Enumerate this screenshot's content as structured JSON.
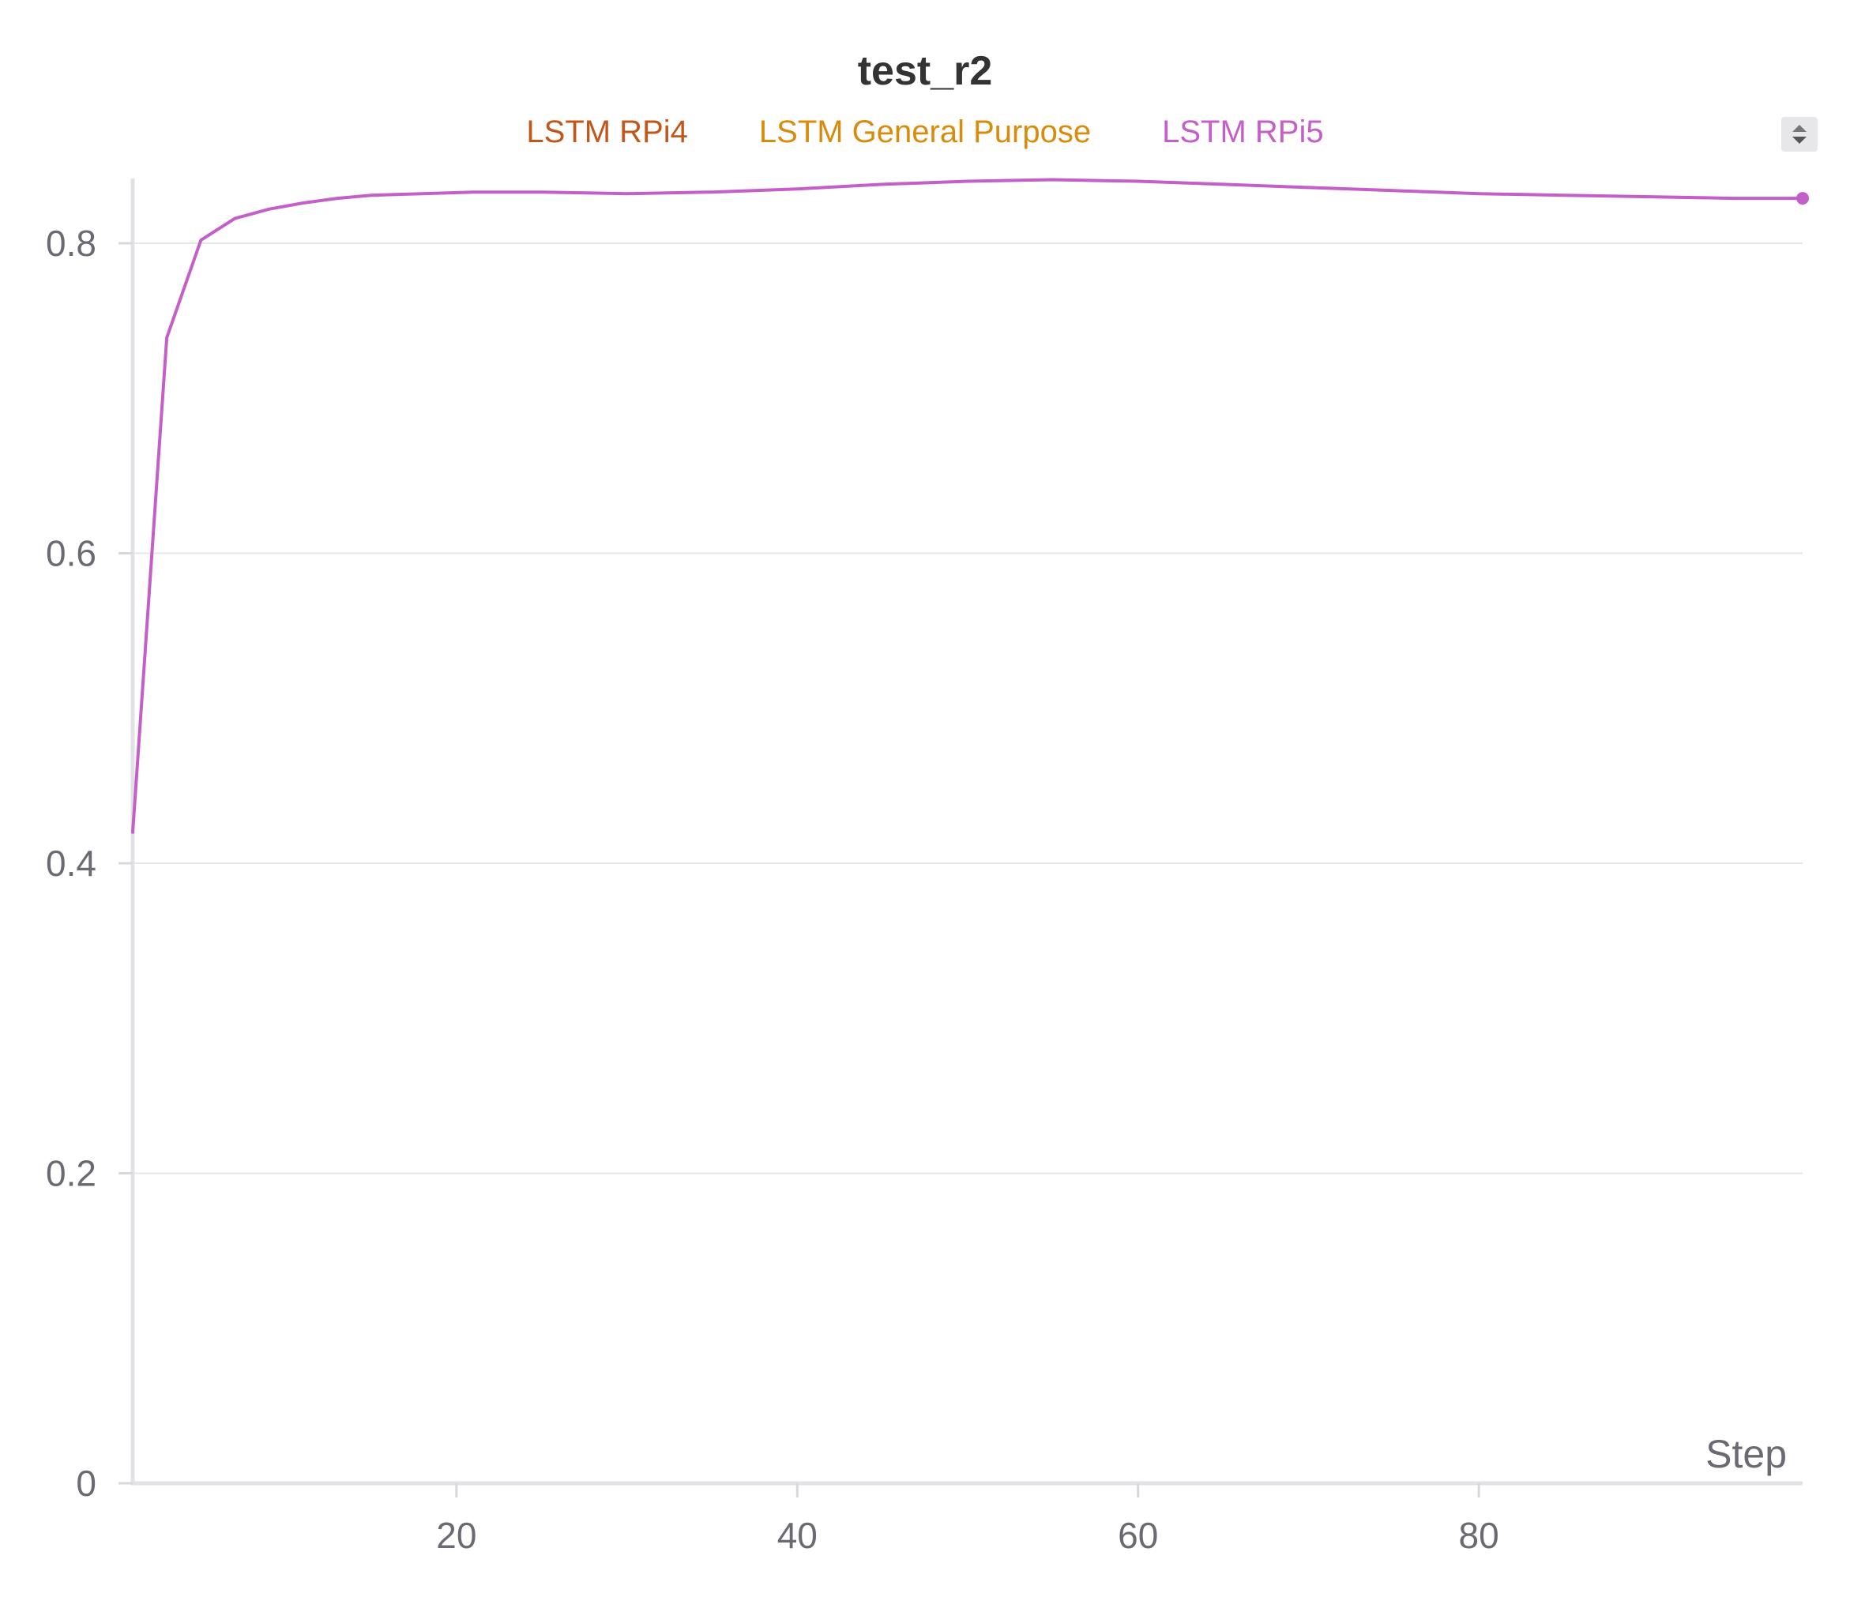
{
  "panel": {
    "title": "test_r2",
    "legend_toggle_icon": "sort-arrows-icon"
  },
  "chart_data": {
    "type": "line",
    "title": "test_r2",
    "xlabel": "Step",
    "ylabel": "",
    "xlim": [
      1,
      99
    ],
    "ylim": [
      0,
      0.84
    ],
    "xticks": [
      20,
      40,
      60,
      80
    ],
    "yticks": [
      0,
      0.2,
      0.4,
      0.6,
      0.8
    ],
    "xtick_labels": [
      "20",
      "40",
      "60",
      "80"
    ],
    "ytick_labels": [
      "0",
      "0.2",
      "0.4",
      "0.6",
      "0.8"
    ],
    "grid": "horizontal",
    "legend_position": "top-center",
    "legend": [
      {
        "name": "LSTM RPi4",
        "color": "#c0571c"
      },
      {
        "name": "LSTM General Purpose",
        "color": "#d98b0b"
      },
      {
        "name": "LSTM RPi5",
        "color": "#c45ec8"
      }
    ],
    "series": [
      {
        "name": "LSTM RPi5",
        "color": "#c45ec8",
        "x": [
          1,
          3,
          5,
          7,
          9,
          11,
          13,
          15,
          18,
          21,
          25,
          30,
          35,
          40,
          45,
          50,
          55,
          60,
          65,
          70,
          75,
          80,
          85,
          90,
          95,
          99
        ],
        "y": [
          0.42,
          0.739,
          0.802,
          0.816,
          0.822,
          0.826,
          0.829,
          0.831,
          0.832,
          0.833,
          0.833,
          0.832,
          0.833,
          0.835,
          0.838,
          0.84,
          0.841,
          0.84,
          0.838,
          0.836,
          0.834,
          0.832,
          0.831,
          0.83,
          0.829,
          0.829
        ]
      }
    ],
    "end_marker": true
  }
}
